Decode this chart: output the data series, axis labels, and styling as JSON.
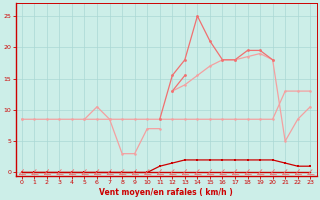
{
  "x": [
    0,
    1,
    2,
    3,
    4,
    5,
    6,
    7,
    8,
    9,
    10,
    11,
    12,
    13,
    14,
    15,
    16,
    17,
    18,
    19,
    20,
    21,
    22,
    23
  ],
  "rafales": [
    null,
    null,
    null,
    null,
    null,
    null,
    null,
    null,
    null,
    null,
    null,
    8.5,
    15.5,
    18,
    25,
    21,
    18,
    18,
    19.5,
    19.5,
    18,
    null,
    null,
    null
  ],
  "rafales2": [
    null,
    null,
    null,
    null,
    null,
    null,
    null,
    null,
    null,
    null,
    null,
    null,
    13,
    15.5,
    null,
    null,
    null,
    null,
    null,
    null,
    null,
    null,
    null,
    null
  ],
  "moyen_upper": [
    null,
    null,
    null,
    null,
    null,
    null,
    null,
    null,
    null,
    null,
    null,
    null,
    13,
    14,
    15.5,
    17,
    18,
    18,
    18.5,
    19,
    18,
    5,
    8.5,
    10.5
  ],
  "moyen_flat": [
    8.5,
    8.5,
    8.5,
    8.5,
    8.5,
    8.5,
    8.5,
    8.5,
    8.5,
    8.5,
    8.5,
    8.5,
    8.5,
    8.5,
    8.5,
    8.5,
    8.5,
    8.5,
    8.5,
    8.5,
    8.5,
    13,
    13,
    13
  ],
  "moyen_lower": [
    8.5,
    null,
    null,
    null,
    null,
    8.5,
    10.5,
    8.5,
    3,
    3,
    7,
    7,
    null,
    null,
    null,
    null,
    null,
    null,
    null,
    null,
    null,
    null,
    null,
    null
  ],
  "avg_speed": [
    0,
    0,
    0,
    0,
    0,
    0,
    0,
    0,
    0,
    0,
    0,
    1,
    1.5,
    2,
    2,
    2,
    2,
    2,
    2,
    2,
    2,
    1.5,
    1,
    1
  ],
  "zero_line": [
    0,
    0,
    0,
    0,
    0,
    0,
    0,
    0,
    0,
    0,
    0,
    0,
    0,
    0,
    0,
    0,
    0,
    0,
    0,
    0,
    0,
    0,
    0,
    0
  ],
  "color_dark": "#cc0000",
  "color_light": "#f4a0a0",
  "color_mid": "#f07070",
  "bg_color": "#cceee8",
  "grid_color": "#aad8d4",
  "xlabel": "Vent moyen/en rafales ( km/h )",
  "ylim": [
    -0.5,
    27
  ],
  "xlim": [
    -0.5,
    23.5
  ],
  "yticks": [
    0,
    5,
    10,
    15,
    20,
    25
  ],
  "xticks": [
    0,
    1,
    2,
    3,
    4,
    5,
    6,
    7,
    8,
    9,
    10,
    11,
    12,
    13,
    14,
    15,
    16,
    17,
    18,
    19,
    20,
    21,
    22,
    23
  ]
}
